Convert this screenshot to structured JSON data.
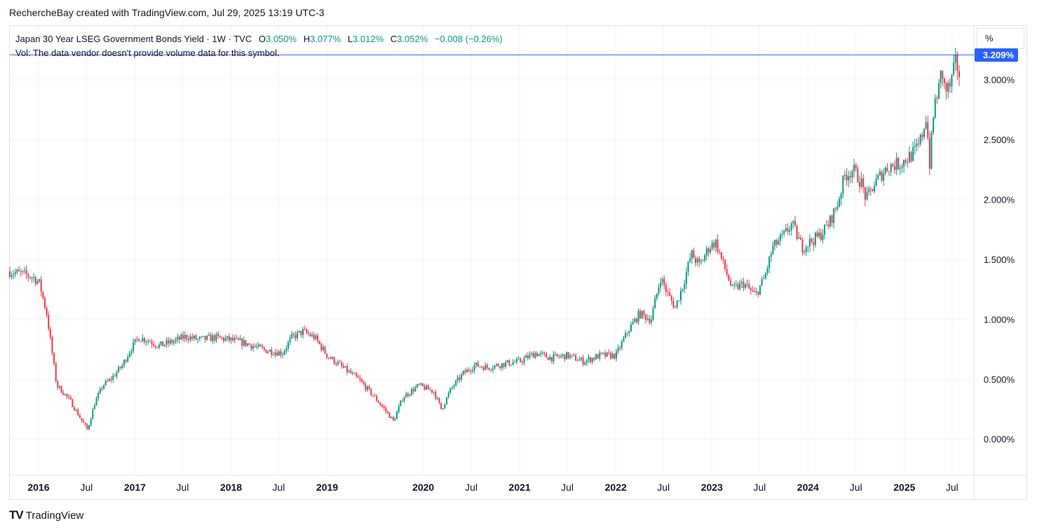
{
  "caption": "RechercheBay created with TradingView.com, Jul 29, 2025 13:19 UTC-3",
  "legend": {
    "symbol": "Japan 30 Year LSEG Government Bonds Yield · 1W · TVC",
    "open_label": "O",
    "open": "3.050%",
    "high_label": "H",
    "high": "3.077%",
    "low_label": "L",
    "low": "3.012%",
    "close_label": "C",
    "close": "3.052%",
    "change": "−0.008 (−0.26%)",
    "volume_note": "Vol: The data vendor doesn't provide volume data for this symbol."
  },
  "unit_button": "%",
  "price_tag": "3.209%",
  "branding": {
    "logo": "TV",
    "name": "TradingView"
  },
  "colors": {
    "up": "#089981",
    "down": "#f23645",
    "accent": "#2962ff",
    "grid": "#f0f3fa",
    "line": "#2962ff"
  },
  "chart_data": {
    "type": "candlestick",
    "title": "Japan 30 Year LSEG Government Bonds Yield",
    "interval": "1W",
    "y_unit": "%",
    "ylim": [
      -0.3,
      3.45
    ],
    "xlim": [
      "2015-09-14",
      "2025-09-22"
    ],
    "grid": true,
    "last_price_line": 3.209,
    "y_ticks": [
      "0.000%",
      "0.500%",
      "1.000%",
      "1.500%",
      "2.000%",
      "2.500%",
      "3.000%"
    ],
    "y_tick_values": [
      0,
      0.5,
      1.0,
      1.5,
      2.0,
      2.5,
      3.0
    ],
    "x_ticks": [
      {
        "label": "2016",
        "date": "2016-01-01",
        "bold": true
      },
      {
        "label": "Jul",
        "date": "2016-07-01",
        "bold": false
      },
      {
        "label": "2017",
        "date": "2017-01-01",
        "bold": true
      },
      {
        "label": "Jul",
        "date": "2017-07-01",
        "bold": false
      },
      {
        "label": "2018",
        "date": "2018-01-01",
        "bold": true
      },
      {
        "label": "Jul",
        "date": "2018-07-01",
        "bold": false
      },
      {
        "label": "2019",
        "date": "2019-01-01",
        "bold": true
      },
      {
        "label": "2020",
        "date": "2020-01-01",
        "bold": true
      },
      {
        "label": "Jul",
        "date": "2020-07-01",
        "bold": false
      },
      {
        "label": "2021",
        "date": "2021-01-01",
        "bold": true
      },
      {
        "label": "Jul",
        "date": "2021-07-01",
        "bold": false
      },
      {
        "label": "2022",
        "date": "2022-01-01",
        "bold": true
      },
      {
        "label": "Jul",
        "date": "2022-07-01",
        "bold": false
      },
      {
        "label": "2023",
        "date": "2023-01-01",
        "bold": true
      },
      {
        "label": "Jul",
        "date": "2023-07-01",
        "bold": false
      },
      {
        "label": "2024",
        "date": "2024-01-01",
        "bold": true
      },
      {
        "label": "Jul",
        "date": "2024-07-01",
        "bold": false
      },
      {
        "label": "2025",
        "date": "2025-01-01",
        "bold": true
      },
      {
        "label": "Jul",
        "date": "2025-07-01",
        "bold": false
      }
    ],
    "close_path": [
      [
        "2015-09-14",
        1.4
      ],
      [
        "2015-11-01",
        1.38
      ],
      [
        "2015-12-15",
        1.35
      ],
      [
        "2016-01-05",
        1.3
      ],
      [
        "2016-02-01",
        1.05
      ],
      [
        "2016-02-20",
        0.75
      ],
      [
        "2016-03-10",
        0.45
      ],
      [
        "2016-04-01",
        0.4
      ],
      [
        "2016-05-01",
        0.32
      ],
      [
        "2016-06-15",
        0.15
      ],
      [
        "2016-07-05",
        0.08
      ],
      [
        "2016-08-01",
        0.3
      ],
      [
        "2016-09-01",
        0.45
      ],
      [
        "2016-10-01",
        0.5
      ],
      [
        "2016-11-15",
        0.62
      ],
      [
        "2016-12-15",
        0.75
      ],
      [
        "2017-01-15",
        0.85
      ],
      [
        "2017-03-01",
        0.82
      ],
      [
        "2017-04-01",
        0.78
      ],
      [
        "2017-06-01",
        0.82
      ],
      [
        "2017-07-15",
        0.86
      ],
      [
        "2017-09-01",
        0.83
      ],
      [
        "2017-11-01",
        0.85
      ],
      [
        "2018-01-01",
        0.83
      ],
      [
        "2018-03-01",
        0.8
      ],
      [
        "2018-05-01",
        0.75
      ],
      [
        "2018-07-15",
        0.72
      ],
      [
        "2018-08-20",
        0.85
      ],
      [
        "2018-10-01",
        0.9
      ],
      [
        "2018-11-15",
        0.85
      ],
      [
        "2019-01-01",
        0.7
      ],
      [
        "2019-03-01",
        0.6
      ],
      [
        "2019-05-01",
        0.5
      ],
      [
        "2019-07-01",
        0.35
      ],
      [
        "2019-08-25",
        0.2
      ],
      [
        "2019-09-10",
        0.15
      ],
      [
        "2019-10-15",
        0.35
      ],
      [
        "2019-12-15",
        0.45
      ],
      [
        "2020-02-10",
        0.4
      ],
      [
        "2020-03-10",
        0.25
      ],
      [
        "2020-04-15",
        0.42
      ],
      [
        "2020-06-01",
        0.55
      ],
      [
        "2020-07-15",
        0.62
      ],
      [
        "2020-09-01",
        0.6
      ],
      [
        "2020-11-01",
        0.63
      ],
      [
        "2021-01-01",
        0.65
      ],
      [
        "2021-03-01",
        0.72
      ],
      [
        "2021-05-01",
        0.68
      ],
      [
        "2021-07-01",
        0.7
      ],
      [
        "2021-09-01",
        0.65
      ],
      [
        "2021-11-01",
        0.7
      ],
      [
        "2022-01-01",
        0.7
      ],
      [
        "2022-02-15",
        0.9
      ],
      [
        "2022-04-01",
        1.05
      ],
      [
        "2022-05-15",
        1.0
      ],
      [
        "2022-06-20",
        1.35
      ],
      [
        "2022-07-20",
        1.2
      ],
      [
        "2022-08-15",
        1.1
      ],
      [
        "2022-09-15",
        1.3
      ],
      [
        "2022-10-15",
        1.55
      ],
      [
        "2022-11-15",
        1.45
      ],
      [
        "2022-12-20",
        1.6
      ],
      [
        "2023-01-15",
        1.65
      ],
      [
        "2023-02-15",
        1.45
      ],
      [
        "2023-03-20",
        1.25
      ],
      [
        "2023-05-01",
        1.3
      ],
      [
        "2023-06-15",
        1.2
      ],
      [
        "2023-07-20",
        1.35
      ],
      [
        "2023-08-20",
        1.6
      ],
      [
        "2023-10-01",
        1.7
      ],
      [
        "2023-11-01",
        1.8
      ],
      [
        "2023-12-10",
        1.6
      ],
      [
        "2024-01-10",
        1.65
      ],
      [
        "2024-02-15",
        1.7
      ],
      [
        "2024-03-20",
        1.8
      ],
      [
        "2024-04-20",
        1.95
      ],
      [
        "2024-05-20",
        2.2
      ],
      [
        "2024-06-20",
        2.25
      ],
      [
        "2024-07-20",
        2.15
      ],
      [
        "2024-08-10",
        2.0
      ],
      [
        "2024-09-01",
        2.1
      ],
      [
        "2024-10-01",
        2.2
      ],
      [
        "2024-11-01",
        2.28
      ],
      [
        "2024-12-15",
        2.3
      ],
      [
        "2025-01-15",
        2.35
      ],
      [
        "2025-02-10",
        2.4
      ],
      [
        "2025-02-25",
        2.45
      ],
      [
        "2025-03-10",
        2.55
      ],
      [
        "2025-03-25",
        2.7
      ],
      [
        "2025-04-07",
        2.3
      ],
      [
        "2025-04-25",
        2.8
      ],
      [
        "2025-05-15",
        2.95
      ],
      [
        "2025-05-22",
        3.1
      ],
      [
        "2025-06-05",
        2.9
      ],
      [
        "2025-06-25",
        2.95
      ],
      [
        "2025-07-15",
        3.15
      ],
      [
        "2025-07-28",
        3.052
      ]
    ]
  }
}
